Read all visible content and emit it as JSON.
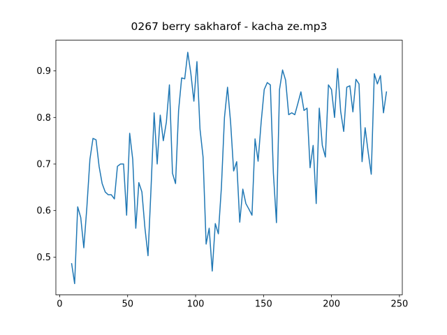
{
  "chart_data": {
    "type": "line",
    "title": "0267 berry sakharof - kacha ze.mp3",
    "color": "#1f77b4",
    "x": [
      8.75,
      11,
      13.25,
      15.5,
      17.75,
      20,
      22.25,
      24.5,
      26.75,
      29,
      31.25,
      33.5,
      35.75,
      38,
      40.25,
      42.5,
      44.75,
      47,
      49.25,
      51.5,
      53.75,
      56,
      58.25,
      60.5,
      62.75,
      65,
      67.25,
      69.5,
      71.75,
      74,
      76.25,
      78.5,
      80.75,
      83,
      85.25,
      87.5,
      89.75,
      92,
      94.25,
      96.5,
      98.75,
      101,
      103.25,
      105.5,
      107.75,
      110,
      112.25,
      114.5,
      116.75,
      119,
      121.25,
      123.5,
      125.75,
      128,
      130.25,
      132.5,
      134.75,
      137,
      139.25,
      141.5,
      143.75,
      146,
      148.25,
      150.5,
      152.75,
      155,
      157.25,
      159.5,
      161.75,
      164,
      166.25,
      168.5,
      170.75,
      173,
      175.25,
      177.5,
      179.75,
      182,
      184.25,
      186.5,
      188.75,
      191,
      193.25,
      195.5,
      197.75,
      200,
      202.25,
      204.5,
      206.75,
      209,
      211.25,
      213.5,
      215.75,
      218,
      220.25,
      222.5,
      224.75,
      227,
      229.25,
      231.5,
      233.75,
      236,
      238.25,
      240.5
    ],
    "values": [
      0.487,
      0.443,
      0.608,
      0.585,
      0.52,
      0.607,
      0.71,
      0.755,
      0.752,
      0.695,
      0.658,
      0.64,
      0.634,
      0.634,
      0.625,
      0.695,
      0.7,
      0.7,
      0.59,
      0.766,
      0.71,
      0.562,
      0.66,
      0.64,
      0.562,
      0.503,
      0.65,
      0.81,
      0.7,
      0.805,
      0.75,
      0.79,
      0.87,
      0.68,
      0.658,
      0.815,
      0.885,
      0.883,
      0.94,
      0.895,
      0.835,
      0.92,
      0.775,
      0.715,
      0.528,
      0.562,
      0.47,
      0.572,
      0.55,
      0.65,
      0.8,
      0.865,
      0.79,
      0.685,
      0.705,
      0.575,
      0.646,
      0.615,
      0.603,
      0.59,
      0.754,
      0.706,
      0.79,
      0.86,
      0.875,
      0.87,
      0.68,
      0.574,
      0.86,
      0.902,
      0.88,
      0.806,
      0.81,
      0.806,
      0.83,
      0.855,
      0.815,
      0.82,
      0.692,
      0.74,
      0.615,
      0.82,
      0.74,
      0.715,
      0.87,
      0.86,
      0.8,
      0.905,
      0.813,
      0.77,
      0.865,
      0.868,
      0.812,
      0.882,
      0.872,
      0.705,
      0.778,
      0.725,
      0.678,
      0.894,
      0.872,
      0.89,
      0.81,
      0.856
    ],
    "xlim": [
      -2.8,
      252.1
    ],
    "xticks": [
      0,
      50,
      100,
      150,
      200,
      250
    ],
    "ylim": [
      0.419,
      0.966
    ],
    "yticks": [
      0.5,
      0.6,
      0.7,
      0.8,
      0.9
    ]
  }
}
